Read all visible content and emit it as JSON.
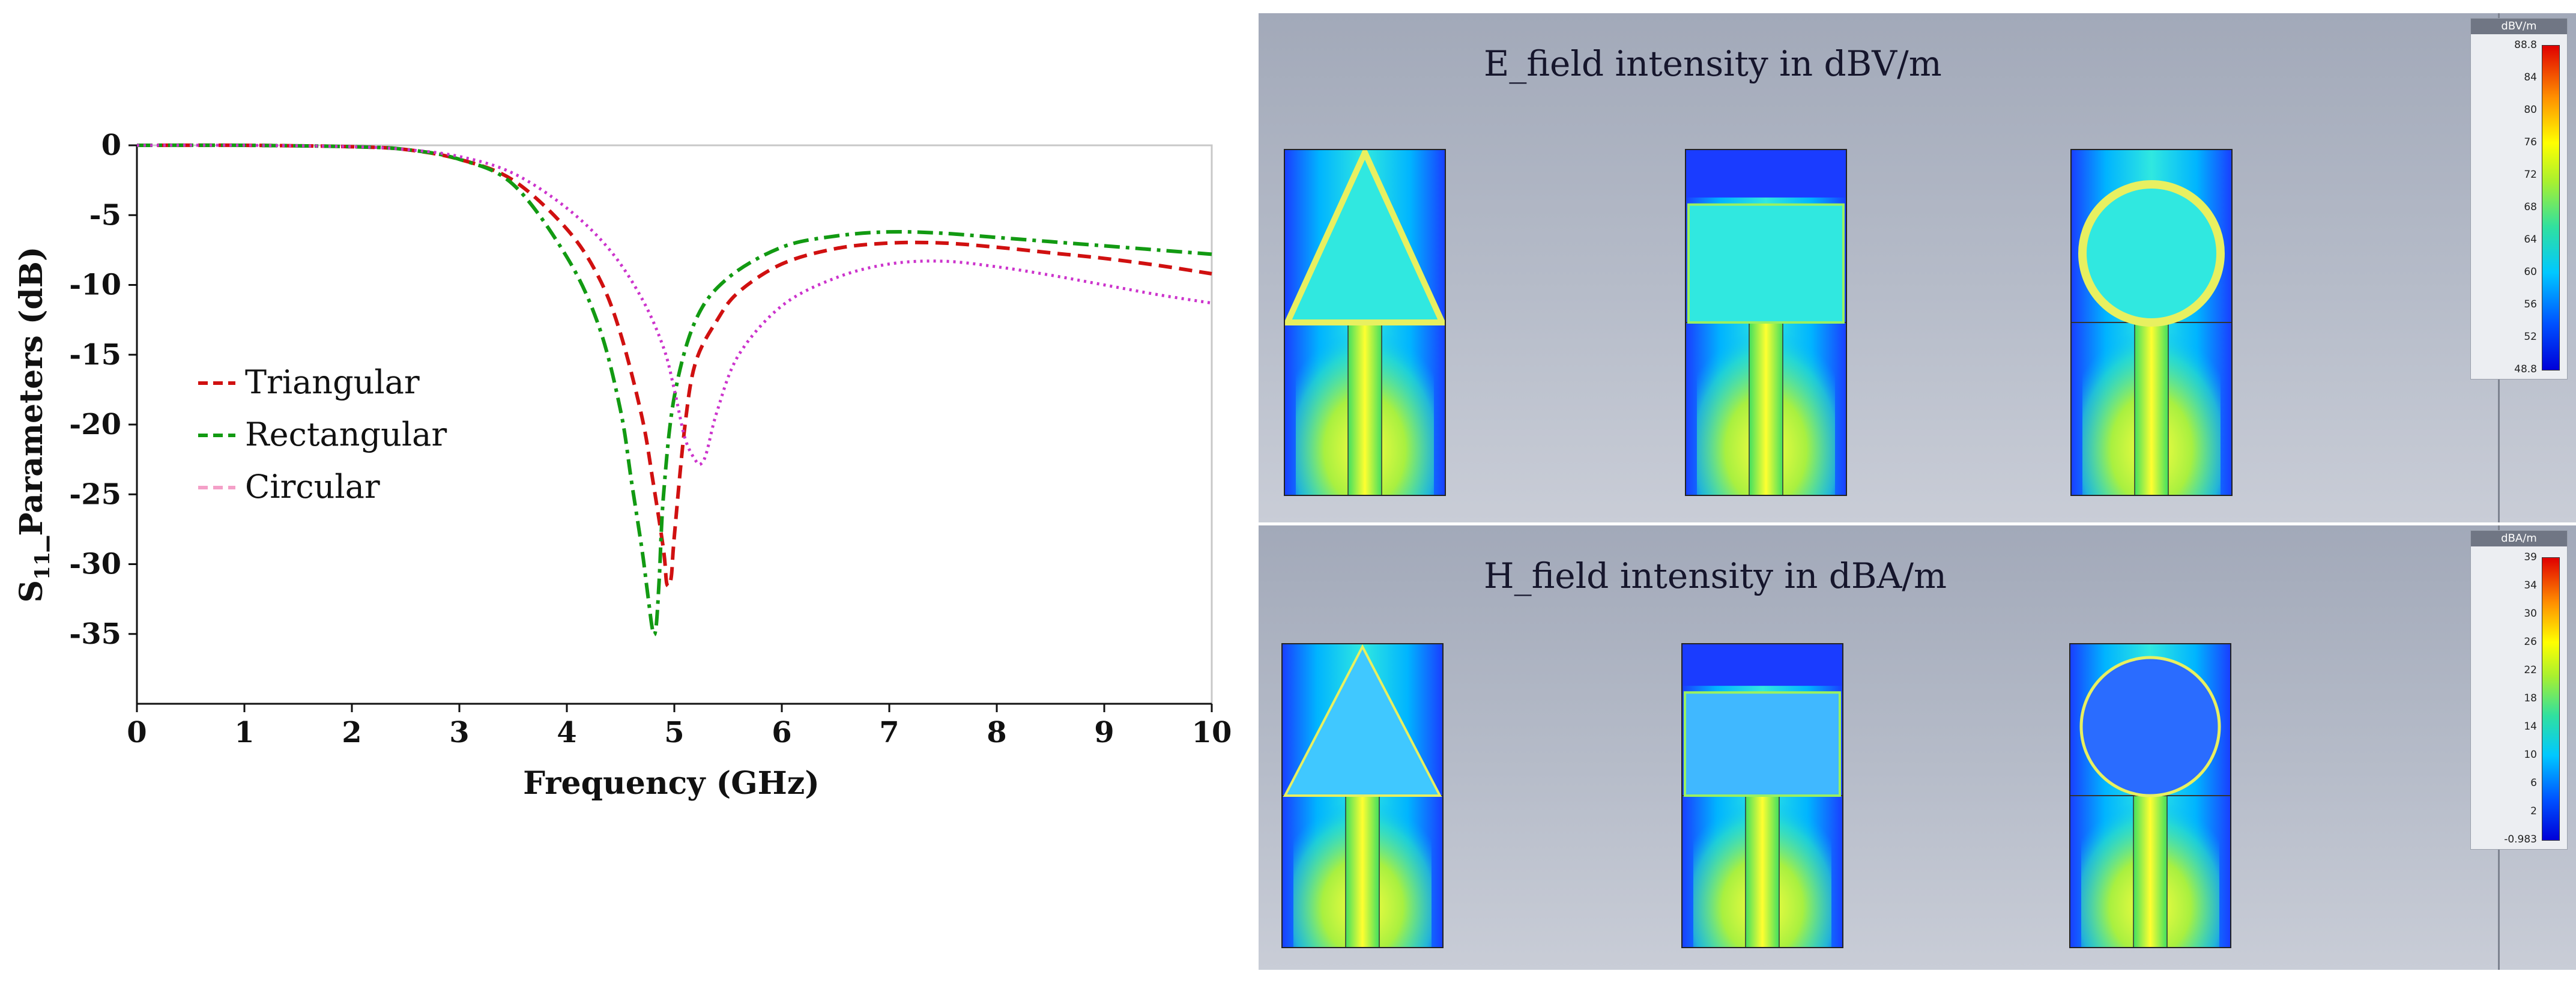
{
  "chart_data": {
    "type": "line",
    "title": "",
    "xlabel": "Frequency (GHz)",
    "ylabel_main": "S",
    "ylabel_sub": "11",
    "ylabel_rest": "_Parameters (dB)",
    "xlim": [
      0,
      10
    ],
    "ylim": [
      -40,
      0
    ],
    "xticks": [
      "0",
      "1",
      "2",
      "3",
      "4",
      "5",
      "6",
      "7",
      "8",
      "9",
      "10"
    ],
    "yticks": [
      "0",
      "-5",
      "-10",
      "-15",
      "-20",
      "-25",
      "-30",
      "-35"
    ],
    "grid": false,
    "legend_position": "middle-left",
    "series": [
      {
        "name": "Triangular",
        "color": "#d01010",
        "dash": "dashed",
        "x": [
          0,
          1,
          2,
          2.5,
          3,
          3.5,
          4,
          4.3,
          4.5,
          4.7,
          4.8,
          4.9,
          4.93,
          4.97,
          5.0,
          5.1,
          5.2,
          5.4,
          5.6,
          6,
          6.5,
          7,
          7.5,
          8,
          8.5,
          9,
          9.5,
          10
        ],
        "y": [
          0,
          0,
          -0.1,
          -0.3,
          -1,
          -2.5,
          -6,
          -9.5,
          -13.5,
          -19.5,
          -24,
          -29,
          -31.4,
          -31,
          -28,
          -20,
          -15.5,
          -12.5,
          -10.5,
          -8.5,
          -7.4,
          -7.0,
          -7.0,
          -7.3,
          -7.7,
          -8.1,
          -8.6,
          -9.2
        ]
      },
      {
        "name": "Rectangular",
        "color": "#129a12",
        "dash": "dashdot",
        "x": [
          0,
          1,
          2,
          2.5,
          3,
          3.5,
          4,
          4.3,
          4.5,
          4.6,
          4.7,
          4.75,
          4.8,
          4.83,
          4.86,
          4.9,
          5.0,
          5.2,
          5.5,
          6,
          6.5,
          7,
          7.5,
          8,
          8.5,
          9,
          9.5,
          10
        ],
        "y": [
          0,
          0,
          -0.1,
          -0.3,
          -1,
          -2.8,
          -8,
          -13,
          -19,
          -24,
          -29,
          -32,
          -34.8,
          -34.5,
          -31,
          -25,
          -18,
          -12.5,
          -9.5,
          -7.3,
          -6.5,
          -6.2,
          -6.3,
          -6.6,
          -6.9,
          -7.2,
          -7.5,
          -7.8
        ]
      },
      {
        "name": "Circular",
        "color": "#cc33cc",
        "legend_color": "#f4a0c8",
        "dash": "dotted",
        "x": [
          0,
          1,
          2,
          2.5,
          3,
          3.5,
          4,
          4.4,
          4.7,
          4.9,
          5.0,
          5.1,
          5.2,
          5.25,
          5.3,
          5.4,
          5.6,
          6,
          6.5,
          7,
          7.5,
          8,
          8.5,
          9,
          9.5,
          10
        ],
        "y": [
          0,
          0,
          -0.1,
          -0.3,
          -0.8,
          -2,
          -4.5,
          -7.5,
          -11,
          -14.5,
          -17.5,
          -21,
          -22.6,
          -22.8,
          -22,
          -19,
          -15,
          -11.5,
          -9.5,
          -8.5,
          -8.3,
          -8.7,
          -9.3,
          -10,
          -10.7,
          -11.3
        ]
      }
    ]
  },
  "sim": {
    "e_field": {
      "title": "E_field intensity in dBV/m",
      "unit": "dBV/m",
      "ticks": [
        "88.8",
        "84",
        "80",
        "76",
        "72",
        "68",
        "64",
        "60",
        "56",
        "52",
        "48.8"
      ]
    },
    "h_field": {
      "title": "H_field intensity in dBA/m",
      "unit": "dBA/m",
      "ticks": [
        "39",
        "34",
        "30",
        "26",
        "22",
        "18",
        "14",
        "10",
        "6",
        "2",
        "-0.983"
      ]
    },
    "antennas": [
      "triangular-patch",
      "rectangular-patch",
      "circular-patch"
    ]
  }
}
